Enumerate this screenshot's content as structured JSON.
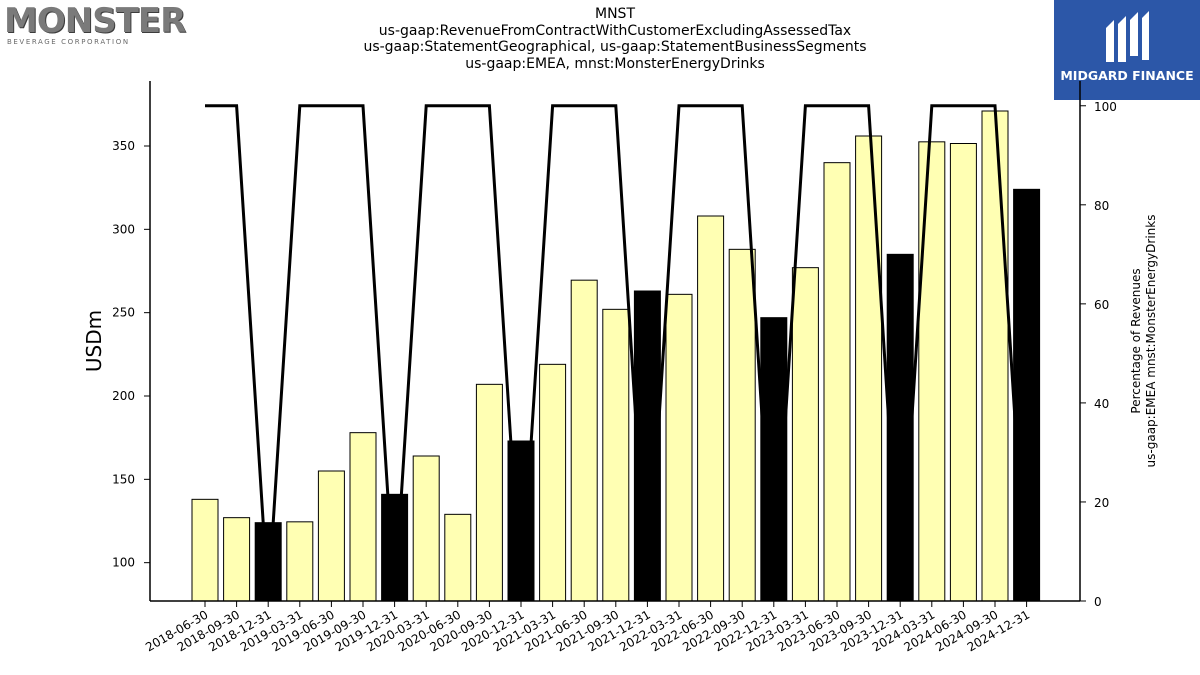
{
  "header": {
    "title_lines": [
      "MNST",
      "us-gaap:RevenueFromContractWithCustomerExcludingAssessedTax",
      "us-gaap:StatementGeographical, us-gaap:StatementBusinessSegments",
      "us-gaap:EMEA, mnst:MonsterEnergyDrinks"
    ]
  },
  "logos": {
    "left_word": "MONSTER",
    "left_sub": "BEVERAGE CORPORATION",
    "right_brand": "MIDGARD FINANCE"
  },
  "colors": {
    "bar_fill": "#ffffb3",
    "bar_highlight": "#000000",
    "line": "#000000",
    "logo_right_bg": "#2c57a8"
  },
  "chart_data": {
    "type": "bar",
    "categories": [
      "2018-06-30",
      "2018-09-30",
      "2018-12-31",
      "2019-03-31",
      "2019-06-30",
      "2019-09-30",
      "2019-12-31",
      "2020-03-31",
      "2020-06-30",
      "2020-09-30",
      "2020-12-31",
      "2021-03-31",
      "2021-06-30",
      "2021-09-30",
      "2021-12-31",
      "2022-03-31",
      "2022-06-30",
      "2022-09-30",
      "2022-12-31",
      "2023-03-31",
      "2023-06-30",
      "2023-09-30",
      "2023-12-31",
      "2024-03-31",
      "2024-06-30",
      "2024-09-30",
      "2024-12-31"
    ],
    "series": [
      {
        "values": [
          138,
          127,
          124,
          124.5,
          155,
          178,
          141,
          164,
          129,
          207,
          173,
          219,
          269.5,
          252,
          263,
          261,
          308,
          288,
          247,
          277,
          340,
          356,
          285,
          352.5,
          351.5,
          371,
          324
        ],
        "highlight": [
          false,
          false,
          true,
          false,
          false,
          false,
          true,
          false,
          false,
          false,
          true,
          false,
          false,
          false,
          true,
          false,
          false,
          false,
          true,
          false,
          false,
          false,
          true,
          false,
          false,
          false,
          true
        ]
      },
      {
        "type": "line",
        "axis": "right",
        "values": [
          100,
          100,
          0,
          100,
          100,
          100,
          0,
          100,
          100,
          100,
          0,
          100,
          100,
          100,
          0,
          100,
          100,
          100,
          0,
          100,
          100,
          100,
          0,
          100,
          100,
          100,
          0
        ]
      }
    ],
    "ylabel": "USDm",
    "ylabel_right": [
      "Percentage of Revenues",
      "us-gaap:EMEA mnst:MonsterEnergyDrinks"
    ],
    "ylim": [
      77,
      389
    ],
    "ylim_right": [
      0,
      105
    ],
    "yticks": [
      100,
      150,
      200,
      250,
      300,
      350
    ],
    "yticks_right": [
      0,
      20,
      40,
      60,
      80,
      100
    ],
    "grid": false
  }
}
